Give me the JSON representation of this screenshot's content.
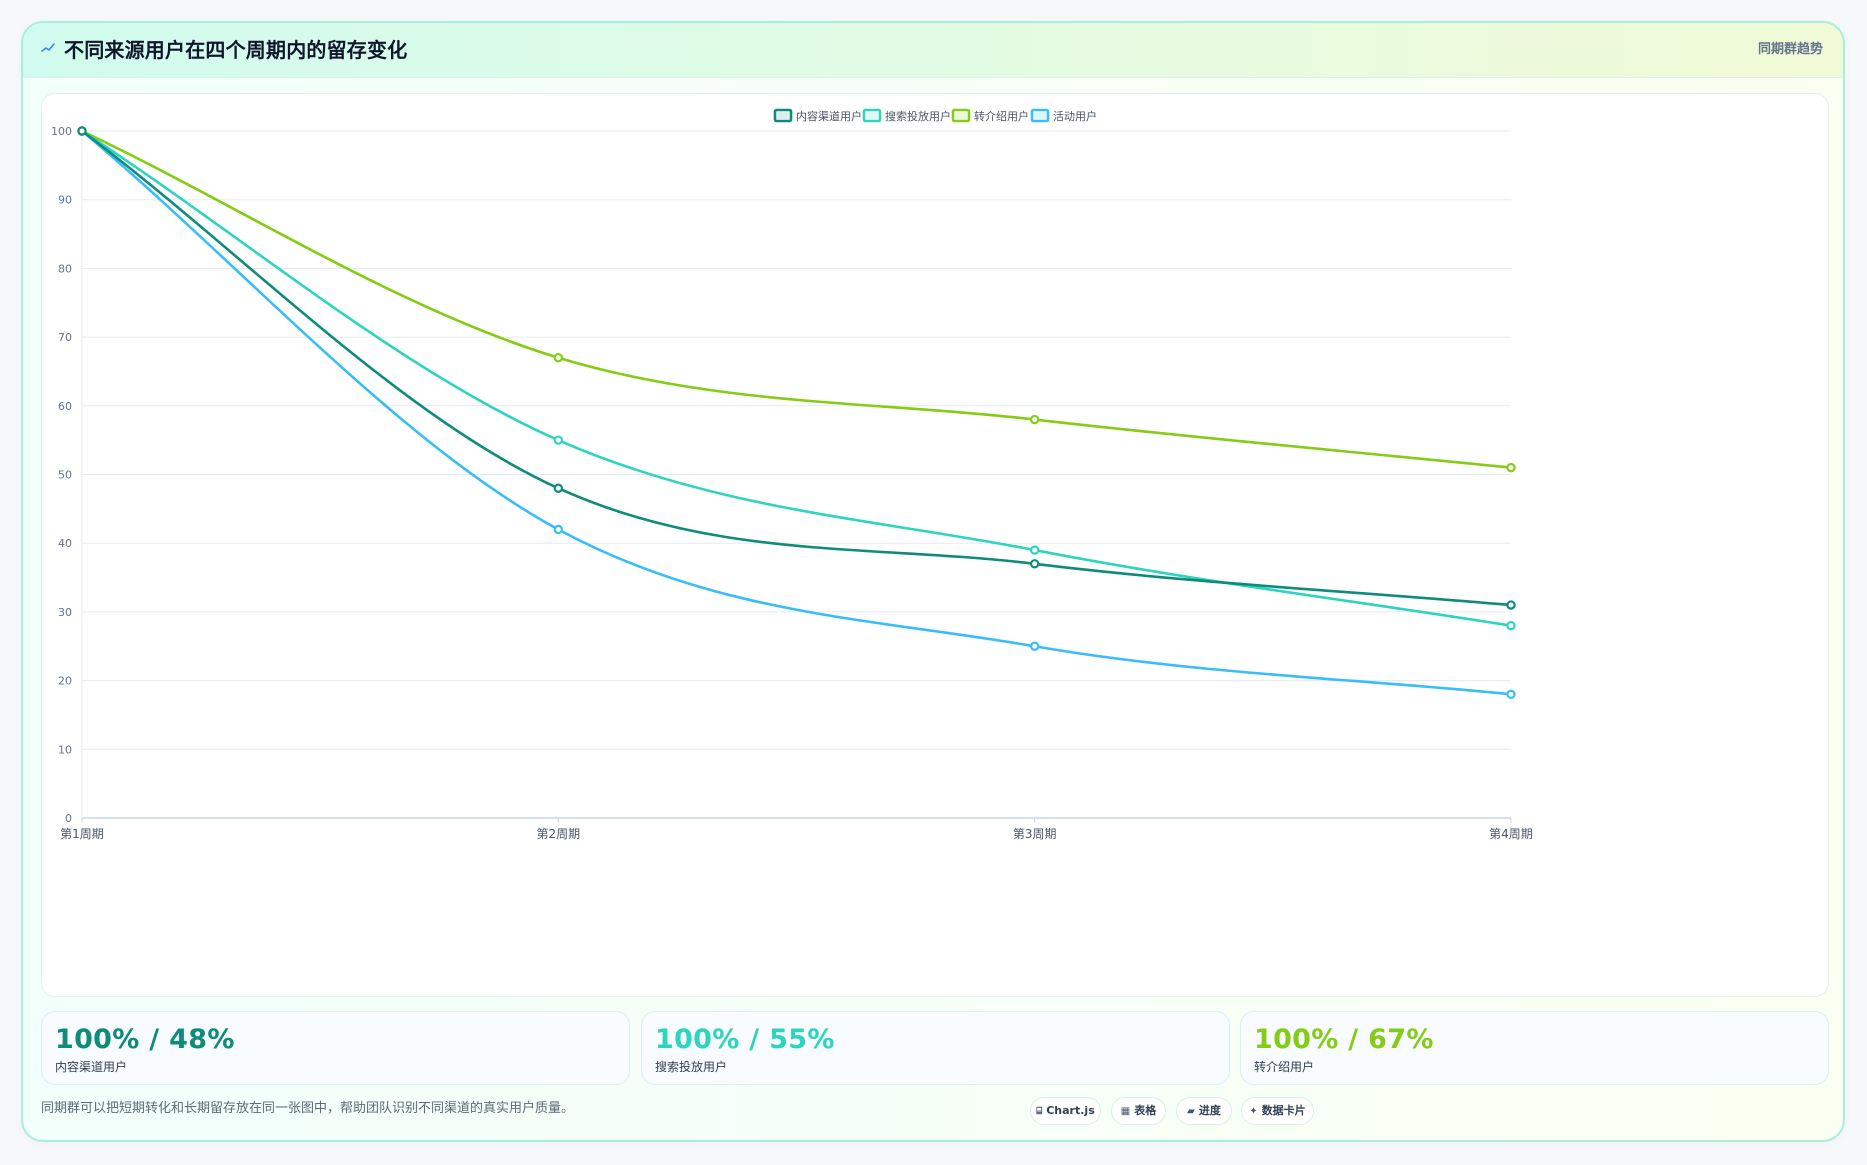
{
  "header": {
    "icon": "chart-line-icon",
    "title": "不同来源用户在四个周期内的留存变化",
    "tag": "同期群趋势"
  },
  "chart_data": {
    "type": "line",
    "title": "",
    "xlabel": "",
    "ylabel": "",
    "categories": [
      "第1周期",
      "第2周期",
      "第3周期",
      "第4周期"
    ],
    "ylim": [
      0,
      100
    ],
    "yticks": [
      0,
      10,
      20,
      30,
      40,
      50,
      60,
      70,
      80,
      90,
      100
    ],
    "legend_position": "top-center",
    "grid": true,
    "series": [
      {
        "name": "内容渠道用户",
        "color": "#0f8b7a",
        "values": [
          100,
          48,
          37,
          31
        ]
      },
      {
        "name": "搜索投放用户",
        "color": "#2dd4bf",
        "values": [
          100,
          55,
          39,
          28
        ]
      },
      {
        "name": "转介绍用户",
        "color": "#84cc16",
        "values": [
          100,
          67,
          58,
          51
        ]
      },
      {
        "name": "活动用户",
        "color": "#38bdf8",
        "values": [
          100,
          42,
          25,
          18
        ]
      }
    ]
  },
  "stats": [
    {
      "value": "100% / 48%",
      "label": "内容渠道用户",
      "color": "#0f8b7a"
    },
    {
      "value": "100% / 55%",
      "label": "搜索投放用户",
      "color": "#2dd4bf"
    },
    {
      "value": "100% / 67%",
      "label": "转介绍用户",
      "color": "#84cc16"
    }
  ],
  "footer": {
    "note": "同期群可以把短期转化和长期留存放在同一张图中，帮助团队识别不同渠道的真实用户质量。",
    "chips": [
      {
        "icon": "code-icon",
        "glyph": "⌸",
        "label": "Chart.js"
      },
      {
        "icon": "table-icon",
        "glyph": "▦",
        "label": "表格"
      },
      {
        "icon": "progress-icon",
        "glyph": "▰",
        "label": "进度"
      },
      {
        "icon": "sparkle-icon",
        "glyph": "✦",
        "label": "数据卡片"
      }
    ]
  }
}
